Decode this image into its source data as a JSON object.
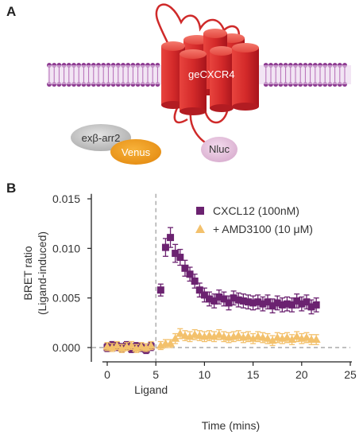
{
  "panels": {
    "a": "A",
    "b": "B"
  },
  "diagram": {
    "receptor_label": "geCXCR4",
    "nluc_label": "Nluc",
    "arrestin_label": "exβ-arr2",
    "venus_label": "Venus"
  },
  "chart_data": {
    "type": "scatter",
    "xlabel": "Time (mins)",
    "ylabel": "BRET ratio\n(Ligand-induced)",
    "xlim": [
      -1,
      25
    ],
    "ylim": [
      -0.0015,
      0.0155
    ],
    "xticks": [
      0,
      5,
      10,
      15,
      20,
      25
    ],
    "yticks": [
      0.0,
      0.005,
      0.01,
      0.015
    ],
    "ytick_labels": [
      "0.000",
      "0.005",
      "0.010",
      "0.015"
    ],
    "annotation": {
      "text": "Ligand",
      "x": 5
    },
    "legend_position": "top-right",
    "series": [
      {
        "name": "CXCL12 (100nM)",
        "marker": "square",
        "color": "#6b2270",
        "points": [
          {
            "x": 0.0,
            "y": 0.0,
            "err": 0.0004
          },
          {
            "x": 0.5,
            "y": 0.0002,
            "err": 0.0004
          },
          {
            "x": 1.0,
            "y": 0.0001,
            "err": 0.0004
          },
          {
            "x": 1.5,
            "y": 0.0,
            "err": 0.0004
          },
          {
            "x": 2.0,
            "y": 0.0002,
            "err": 0.0004
          },
          {
            "x": 2.5,
            "y": -0.0001,
            "err": 0.0004
          },
          {
            "x": 3.0,
            "y": 0.0001,
            "err": 0.0004
          },
          {
            "x": 3.5,
            "y": 0.0,
            "err": 0.0004
          },
          {
            "x": 4.0,
            "y": -0.0002,
            "err": 0.0004
          },
          {
            "x": 4.5,
            "y": 0.0001,
            "err": 0.0004
          },
          {
            "x": 5.5,
            "y": 0.0058,
            "err": 0.0006
          },
          {
            "x": 6.0,
            "y": 0.0101,
            "err": 0.0009
          },
          {
            "x": 6.5,
            "y": 0.0111,
            "err": 0.001
          },
          {
            "x": 7.0,
            "y": 0.0095,
            "err": 0.0009
          },
          {
            "x": 7.5,
            "y": 0.0091,
            "err": 0.0008
          },
          {
            "x": 8.0,
            "y": 0.008,
            "err": 0.0008
          },
          {
            "x": 8.5,
            "y": 0.0074,
            "err": 0.0007
          },
          {
            "x": 9.0,
            "y": 0.0067,
            "err": 0.0007
          },
          {
            "x": 9.5,
            "y": 0.0058,
            "err": 0.0007
          },
          {
            "x": 10.0,
            "y": 0.0053,
            "err": 0.0007
          },
          {
            "x": 10.5,
            "y": 0.0049,
            "err": 0.0007
          },
          {
            "x": 11.0,
            "y": 0.0047,
            "err": 0.0007
          },
          {
            "x": 11.5,
            "y": 0.0051,
            "err": 0.0007
          },
          {
            "x": 12.0,
            "y": 0.0049,
            "err": 0.0007
          },
          {
            "x": 12.5,
            "y": 0.0045,
            "err": 0.0007
          },
          {
            "x": 13.0,
            "y": 0.005,
            "err": 0.0007
          },
          {
            "x": 13.5,
            "y": 0.0048,
            "err": 0.0007
          },
          {
            "x": 14.0,
            "y": 0.0047,
            "err": 0.0007
          },
          {
            "x": 14.5,
            "y": 0.0046,
            "err": 0.0007
          },
          {
            "x": 15.0,
            "y": 0.0045,
            "err": 0.0007
          },
          {
            "x": 15.5,
            "y": 0.0046,
            "err": 0.0007
          },
          {
            "x": 16.0,
            "y": 0.0044,
            "err": 0.0007
          },
          {
            "x": 16.5,
            "y": 0.0046,
            "err": 0.0007
          },
          {
            "x": 17.0,
            "y": 0.0042,
            "err": 0.0007
          },
          {
            "x": 17.5,
            "y": 0.0045,
            "err": 0.0007
          },
          {
            "x": 18.0,
            "y": 0.0043,
            "err": 0.0007
          },
          {
            "x": 18.5,
            "y": 0.0044,
            "err": 0.0007
          },
          {
            "x": 19.0,
            "y": 0.0043,
            "err": 0.0007
          },
          {
            "x": 19.5,
            "y": 0.0047,
            "err": 0.0007
          },
          {
            "x": 20.0,
            "y": 0.0044,
            "err": 0.0007
          },
          {
            "x": 20.5,
            "y": 0.0046,
            "err": 0.0007
          },
          {
            "x": 21.0,
            "y": 0.0041,
            "err": 0.0007
          },
          {
            "x": 21.5,
            "y": 0.0043,
            "err": 0.0007
          }
        ]
      },
      {
        "name": "+ AMD3100 (10 μM)",
        "marker": "triangle",
        "color": "#f3c16c",
        "points": [
          {
            "x": 0.0,
            "y": 0.0001,
            "err": 0.0004
          },
          {
            "x": 0.5,
            "y": 0.0,
            "err": 0.0004
          },
          {
            "x": 1.0,
            "y": 0.0002,
            "err": 0.0004
          },
          {
            "x": 1.5,
            "y": -0.0001,
            "err": 0.0004
          },
          {
            "x": 2.0,
            "y": 0.0001,
            "err": 0.0004
          },
          {
            "x": 2.5,
            "y": 0.0002,
            "err": 0.0004
          },
          {
            "x": 3.0,
            "y": -0.0001,
            "err": 0.0004
          },
          {
            "x": 3.5,
            "y": 0.0001,
            "err": 0.0004
          },
          {
            "x": 4.0,
            "y": 0.0,
            "err": 0.0004
          },
          {
            "x": 4.5,
            "y": 0.0002,
            "err": 0.0004
          },
          {
            "x": 5.5,
            "y": 0.0002,
            "err": 0.0004
          },
          {
            "x": 6.0,
            "y": 0.0004,
            "err": 0.0004
          },
          {
            "x": 6.5,
            "y": 0.0004,
            "err": 0.0004
          },
          {
            "x": 7.0,
            "y": 0.0009,
            "err": 0.0005
          },
          {
            "x": 7.5,
            "y": 0.0014,
            "err": 0.0005
          },
          {
            "x": 8.0,
            "y": 0.0012,
            "err": 0.0005
          },
          {
            "x": 8.5,
            "y": 0.0011,
            "err": 0.0005
          },
          {
            "x": 9.0,
            "y": 0.0013,
            "err": 0.0005
          },
          {
            "x": 9.5,
            "y": 0.0012,
            "err": 0.0005
          },
          {
            "x": 10.0,
            "y": 0.0011,
            "err": 0.0005
          },
          {
            "x": 10.5,
            "y": 0.0012,
            "err": 0.0005
          },
          {
            "x": 11.0,
            "y": 0.0011,
            "err": 0.0005
          },
          {
            "x": 11.5,
            "y": 0.0013,
            "err": 0.0005
          },
          {
            "x": 12.0,
            "y": 0.0011,
            "err": 0.0005
          },
          {
            "x": 12.5,
            "y": 0.001,
            "err": 0.0005
          },
          {
            "x": 13.0,
            "y": 0.0011,
            "err": 0.0005
          },
          {
            "x": 13.5,
            "y": 0.0012,
            "err": 0.0005
          },
          {
            "x": 14.0,
            "y": 0.001,
            "err": 0.0005
          },
          {
            "x": 14.5,
            "y": 0.0011,
            "err": 0.0005
          },
          {
            "x": 15.0,
            "y": 0.0009,
            "err": 0.0005
          },
          {
            "x": 15.5,
            "y": 0.0011,
            "err": 0.0005
          },
          {
            "x": 16.0,
            "y": 0.001,
            "err": 0.0005
          },
          {
            "x": 16.5,
            "y": 0.0009,
            "err": 0.0005
          },
          {
            "x": 17.0,
            "y": 0.0007,
            "err": 0.0005
          },
          {
            "x": 17.5,
            "y": 0.001,
            "err": 0.0005
          },
          {
            "x": 18.0,
            "y": 0.0009,
            "err": 0.0005
          },
          {
            "x": 18.5,
            "y": 0.001,
            "err": 0.0005
          },
          {
            "x": 19.0,
            "y": 0.0008,
            "err": 0.0005
          },
          {
            "x": 19.5,
            "y": 0.0011,
            "err": 0.0005
          },
          {
            "x": 20.0,
            "y": 0.0009,
            "err": 0.0005
          },
          {
            "x": 20.5,
            "y": 0.001,
            "err": 0.0005
          },
          {
            "x": 21.0,
            "y": 0.0008,
            "err": 0.0005
          },
          {
            "x": 21.5,
            "y": 0.0008,
            "err": 0.0005
          }
        ]
      }
    ]
  }
}
